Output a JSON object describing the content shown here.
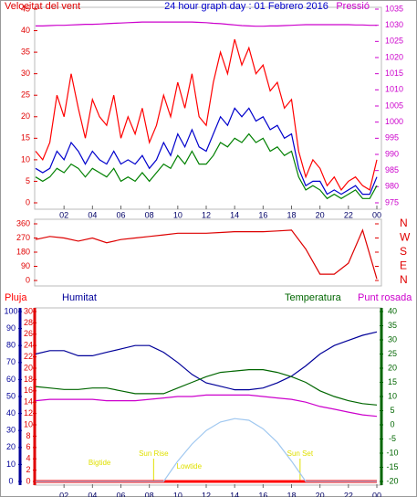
{
  "chart_data": [
    {
      "type": "line",
      "title": "24 hour graph day : 01 Febrero 2016",
      "ylabel": "Velocitat del vent",
      "y2label": "Pressió",
      "x": [
        0,
        0.5,
        1,
        1.5,
        2,
        2.5,
        3,
        3.5,
        4,
        4.5,
        5,
        5.5,
        6,
        6.5,
        7,
        7.5,
        8,
        8.5,
        9,
        9.5,
        10,
        10.5,
        11,
        11.5,
        12,
        12.5,
        13,
        13.5,
        14,
        14.5,
        15,
        15.5,
        16,
        16.5,
        17,
        17.5,
        18,
        18.5,
        19,
        19.5,
        20,
        20.5,
        21,
        21.5,
        22,
        22.5,
        23,
        23.5,
        24
      ],
      "xlim": [
        0,
        24
      ],
      "xticks": [
        {
          "value": 2,
          "label": "02"
        },
        {
          "value": 4,
          "label": "04"
        },
        {
          "value": 6,
          "label": "06"
        },
        {
          "value": 8,
          "label": "08"
        },
        10,
        12,
        14,
        16,
        18,
        20,
        22,
        {
          "value": 24,
          "label": "00"
        }
      ],
      "ylim": [
        0,
        45
      ],
      "yticks": [
        0,
        5,
        10,
        15,
        20,
        25,
        30,
        35,
        40,
        45
      ],
      "y2lim": [
        975,
        1035
      ],
      "y2ticks": [
        975,
        980,
        985,
        990,
        995,
        1000,
        1005,
        1010,
        1015,
        1020,
        1025,
        1030,
        1035
      ],
      "series": [
        {
          "color": "#ff0000",
          "axis": "y",
          "values": [
            12,
            10,
            14,
            25,
            20,
            30,
            22,
            15,
            24,
            20,
            18,
            25,
            15,
            20,
            16,
            22,
            14,
            18,
            25,
            20,
            28,
            22,
            30,
            20,
            18,
            28,
            35,
            30,
            38,
            32,
            36,
            30,
            32,
            26,
            28,
            22,
            24,
            12,
            6,
            10,
            8,
            4,
            6,
            3,
            5,
            6,
            4,
            3,
            10
          ]
        },
        {
          "color": "#008000",
          "axis": "y",
          "values": [
            6,
            5,
            6,
            8,
            7,
            9,
            8,
            6,
            8,
            7,
            6,
            8,
            5,
            6,
            5,
            7,
            5,
            7,
            9,
            8,
            11,
            9,
            12,
            9,
            9,
            11,
            14,
            13,
            15,
            14,
            16,
            14,
            15,
            12,
            13,
            11,
            12,
            6,
            3,
            4,
            3,
            1,
            2,
            1,
            2,
            3,
            1,
            1,
            4
          ]
        },
        {
          "color": "#0000cc",
          "axis": "y",
          "values": [
            8,
            7,
            8,
            12,
            10,
            14,
            12,
            9,
            12,
            10,
            9,
            12,
            9,
            10,
            9,
            11,
            8,
            10,
            14,
            11,
            16,
            13,
            17,
            13,
            12,
            16,
            20,
            18,
            22,
            20,
            22,
            19,
            20,
            17,
            18,
            15,
            16,
            8,
            4,
            5,
            5,
            2,
            3,
            2,
            3,
            4,
            2,
            2,
            6
          ]
        },
        {
          "color": "#cc00cc",
          "axis": "y2",
          "values": [
            1029.8,
            1029.8,
            1029.9,
            1030,
            1030,
            1030.1,
            1030.2,
            1030.3,
            1030.3,
            1030.4,
            1030.5,
            1030.6,
            1030.7,
            1030.8,
            1030.9,
            1031,
            1031,
            1031,
            1031,
            1031,
            1031,
            1031,
            1031,
            1030.9,
            1030.8,
            1030.6,
            1030.5,
            1030.3,
            1030.1,
            1029.9,
            1029.8,
            1029.7,
            1029.7,
            1029.8,
            1029.8,
            1029.9,
            1030,
            1030.1,
            1030.2,
            1030.2,
            1030.2,
            1030.2,
            1030.2,
            1030.2,
            1030.2,
            1030.1,
            1030.1,
            1030,
            1030
          ]
        }
      ]
    },
    {
      "type": "line",
      "x": [
        0,
        1,
        2,
        3,
        4,
        5,
        6,
        7,
        8,
        9,
        10,
        11,
        12,
        13,
        14,
        15,
        16,
        17,
        18,
        19,
        20,
        21,
        22,
        23,
        24
      ],
      "xlim": [
        0,
        24
      ],
      "ylim": [
        0,
        360
      ],
      "yticks": [
        0,
        90,
        180,
        270,
        360
      ],
      "y2lim": [
        0,
        360
      ],
      "y2ticks": [
        {
          "value": 360,
          "label": "N"
        },
        {
          "value": 270,
          "label": "W"
        },
        {
          "value": 180,
          "label": "S"
        },
        {
          "value": 90,
          "label": "E"
        },
        {
          "value": 0,
          "label": "N"
        }
      ],
      "series": [
        {
          "color": "#dd0000",
          "axis": "y",
          "values": [
            260,
            280,
            270,
            250,
            270,
            240,
            260,
            270,
            280,
            290,
            300,
            300,
            300,
            305,
            310,
            310,
            310,
            315,
            320,
            200,
            40,
            40,
            110,
            320,
            10
          ]
        }
      ]
    },
    {
      "type": "line",
      "x": [
        0,
        1,
        2,
        3,
        4,
        5,
        6,
        7,
        8,
        9,
        10,
        11,
        12,
        13,
        14,
        15,
        16,
        17,
        18,
        19,
        20,
        21,
        22,
        23,
        24
      ],
      "xlim": [
        0,
        24
      ],
      "xticks": [
        {
          "value": 2,
          "label": "02"
        },
        {
          "value": 4,
          "label": "04"
        },
        {
          "value": 6,
          "label": "06"
        },
        {
          "value": 8,
          "label": "08"
        },
        10,
        12,
        14,
        16,
        18,
        20,
        22,
        {
          "value": 24,
          "label": "00"
        }
      ],
      "ylim": [
        0,
        100
      ],
      "yticks": [
        0,
        10,
        20,
        30,
        40,
        50,
        60,
        70,
        80,
        90,
        100
      ],
      "y3lim": [
        0,
        30
      ],
      "y3ticks": [
        0,
        2,
        4,
        6,
        8,
        10,
        12,
        14,
        16,
        18,
        20,
        22,
        24,
        26,
        28,
        30
      ],
      "y2lim": [
        -20,
        40
      ],
      "y2ticks": [
        -20,
        -15,
        -10,
        -5,
        0,
        5,
        10,
        15,
        20,
        25,
        30,
        35,
        40
      ],
      "series": [
        {
          "name": "Pluja",
          "color": "#ff0000",
          "axis": "y3",
          "values": [
            0,
            0,
            0,
            0,
            0,
            0,
            0,
            0,
            0,
            0,
            0,
            0,
            0,
            0,
            0,
            0,
            0,
            0,
            0,
            0,
            0,
            0,
            0,
            0,
            0
          ]
        },
        {
          "name": "Humitat",
          "color": "#000099",
          "axis": "y",
          "values": [
            75,
            77,
            77,
            74,
            74,
            76,
            78,
            80,
            80,
            76,
            70,
            63,
            58,
            56,
            54,
            54,
            55,
            58,
            62,
            68,
            75,
            80,
            83,
            86,
            88
          ]
        },
        {
          "name": "Temperatura",
          "color": "#006600",
          "axis": "y2",
          "values": [
            13.5,
            13,
            12.5,
            12.5,
            13,
            13,
            12,
            11,
            11,
            11,
            13,
            15,
            17,
            18.5,
            19,
            19.5,
            19.5,
            18.5,
            17,
            15,
            12,
            10,
            8.5,
            7.5,
            7
          ]
        },
        {
          "name": "Punt rosada",
          "color": "#cc00cc",
          "axis": "y2",
          "values": [
            8.5,
            9,
            9,
            9,
            9,
            8.5,
            8.5,
            8.5,
            9,
            9.5,
            10,
            10,
            10.5,
            10.5,
            10.5,
            10.5,
            10,
            9.5,
            9,
            8,
            6.5,
            5.5,
            4.5,
            3.5,
            3
          ]
        },
        {
          "color": "#a0c8f0",
          "axis": "y",
          "values": [
            0,
            0,
            0,
            0,
            0,
            0,
            0,
            0,
            0,
            0,
            12,
            22,
            30,
            35,
            37,
            36,
            31,
            23,
            12,
            0,
            0,
            0,
            0,
            0,
            0
          ]
        }
      ],
      "annotations": [
        {
          "text": "Bigtide",
          "x": 4.5
        },
        {
          "text": "Sun Rise",
          "x": 8.3
        },
        {
          "text": "Lowtide",
          "x": 10.8
        },
        {
          "text": "Sun Set",
          "x": 18.6
        }
      ]
    }
  ]
}
